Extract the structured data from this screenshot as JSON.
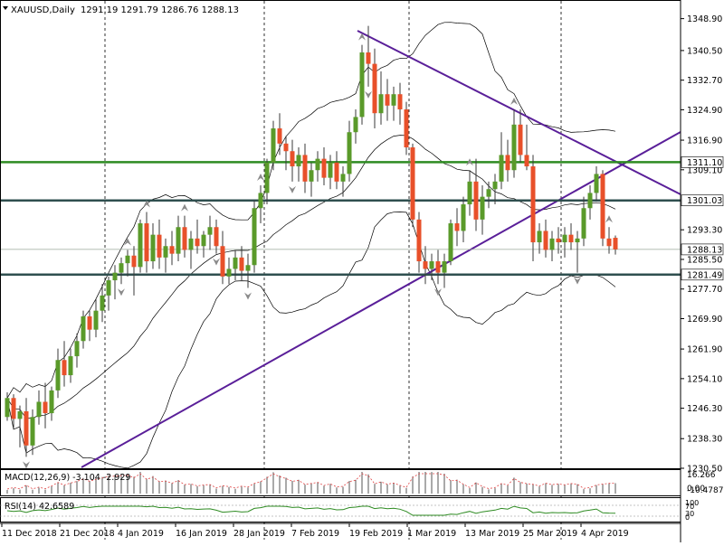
{
  "chart_data": {
    "type": "candlestick",
    "header": {
      "symbol": "XAUUSD,Daily",
      "ohlc": "1291.19 1291.79 1286.76 1288.13"
    },
    "price_axis": {
      "ylim": [
        1230.5,
        1350
      ],
      "ticks": [
        "1348.90",
        "1340.50",
        "1332.70",
        "1324.90",
        "1316.90",
        "1309.10",
        "1293.30",
        "1285.50",
        "1277.70",
        "1269.90",
        "1261.90",
        "1254.10",
        "1246.30",
        "1238.30",
        "1230.50"
      ]
    },
    "date_labels": [
      "11 Dec 2018",
      "21 Dec 2018",
      "4 Jan 2019",
      "16 Jan 2019",
      "28 Jan 2019",
      "7 Feb 2019",
      "19 Feb 2019",
      "1 Mar 2019",
      "13 Mar 2019",
      "25 Mar 2019",
      "4 Apr 2019"
    ],
    "levels": [
      {
        "value": 1311.1,
        "label": "1311.10",
        "color": "#2e8b22"
      },
      {
        "value": 1301.03,
        "label": "1301.03",
        "color": "#2f4f4f"
      },
      {
        "value": 1281.49,
        "label": "1281.49",
        "color": "#2f4f4f"
      }
    ],
    "last_price": {
      "value": 1288.13,
      "label": "1288.13"
    },
    "colors": {
      "up": "#5a9a2a",
      "down": "#e8502a",
      "trendline": "#5a1f99",
      "bands": "#000000"
    },
    "candles": [
      [
        1244.0,
        1250.5,
        1243.0,
        1249.0
      ],
      [
        1249.0,
        1250.0,
        1241.0,
        1243.5
      ],
      [
        1243.5,
        1247.0,
        1236.0,
        1245.5
      ],
      [
        1245.5,
        1249.0,
        1233.5,
        1236.5
      ],
      [
        1236.5,
        1246.0,
        1234.0,
        1244.0
      ],
      [
        1244.0,
        1251.0,
        1242.0,
        1248.0
      ],
      [
        1248.0,
        1253.0,
        1241.0,
        1245.0
      ],
      [
        1245.0,
        1252.0,
        1243.0,
        1251.0
      ],
      [
        1251.0,
        1262.0,
        1249.0,
        1259.0
      ],
      [
        1259.0,
        1264.0,
        1252.0,
        1255.0
      ],
      [
        1255.0,
        1262.0,
        1253.0,
        1260.0
      ],
      [
        1260.0,
        1266.0,
        1257.0,
        1264.0
      ],
      [
        1264.0,
        1272.0,
        1262.0,
        1270.5
      ],
      [
        1270.5,
        1272.0,
        1264.0,
        1267.0
      ],
      [
        1267.0,
        1275.0,
        1265.0,
        1272.0
      ],
      [
        1272.0,
        1279.0,
        1269.0,
        1276.0
      ],
      [
        1276.0,
        1281.0,
        1272.0,
        1280.0
      ],
      [
        1280.0,
        1284.0,
        1275.0,
        1282.0
      ],
      [
        1282.0,
        1286.0,
        1279.0,
        1284.5
      ],
      [
        1284.5,
        1288.0,
        1281.0,
        1286.5
      ],
      [
        1286.5,
        1289.0,
        1276.0,
        1283.5
      ],
      [
        1283.5,
        1296.0,
        1282.0,
        1295.0
      ],
      [
        1295.0,
        1298.0,
        1282.0,
        1285.0
      ],
      [
        1285.0,
        1295.0,
        1283.0,
        1292.0
      ],
      [
        1292.0,
        1296.0,
        1283.0,
        1286.0
      ],
      [
        1286.0,
        1291.0,
        1282.0,
        1289.0
      ],
      [
        1289.0,
        1293.0,
        1284.0,
        1287.0
      ],
      [
        1287.0,
        1297.0,
        1285.0,
        1294.0
      ],
      [
        1294.0,
        1297.0,
        1286.0,
        1288.0
      ],
      [
        1288.0,
        1293.0,
        1283.0,
        1291.0
      ],
      [
        1291.0,
        1296.0,
        1287.0,
        1289.0
      ],
      [
        1289.0,
        1293.0,
        1286.0,
        1292.0
      ],
      [
        1292.0,
        1297.0,
        1288.0,
        1294.0
      ],
      [
        1294.0,
        1296.0,
        1287.0,
        1289.0
      ],
      [
        1289.0,
        1293.0,
        1279.0,
        1281.0
      ],
      [
        1281.0,
        1286.0,
        1279.0,
        1283.0
      ],
      [
        1283.0,
        1288.0,
        1280.0,
        1286.0
      ],
      [
        1286.0,
        1289.0,
        1280.0,
        1282.5
      ],
      [
        1282.5,
        1287.0,
        1278.0,
        1284.0
      ],
      [
        1284.0,
        1301.0,
        1282.0,
        1299.0
      ],
      [
        1299.0,
        1305.0,
        1295.0,
        1303.0
      ],
      [
        1303.0,
        1312.0,
        1300.0,
        1311.0
      ],
      [
        1311.0,
        1322.0,
        1309.0,
        1320.0
      ],
      [
        1320.0,
        1324.0,
        1313.0,
        1316.0
      ],
      [
        1316.0,
        1318.0,
        1309.0,
        1314.0
      ],
      [
        1314.0,
        1317.0,
        1306.0,
        1310.0
      ],
      [
        1310.0,
        1315.0,
        1306.0,
        1313.0
      ],
      [
        1313.0,
        1316.0,
        1303.0,
        1306.0
      ],
      [
        1306.0,
        1311.0,
        1302.0,
        1309.0
      ],
      [
        1309.0,
        1314.0,
        1306.0,
        1312.0
      ],
      [
        1312.0,
        1315.0,
        1305.0,
        1307.0
      ],
      [
        1307.0,
        1313.0,
        1304.0,
        1311.0
      ],
      [
        1311.0,
        1314.0,
        1304.0,
        1306.0
      ],
      [
        1306.0,
        1310.0,
        1302.0,
        1308.0
      ],
      [
        1308.0,
        1322.0,
        1306.0,
        1319.0
      ],
      [
        1319.0,
        1325.0,
        1316.0,
        1323.0
      ],
      [
        1323.0,
        1342.0,
        1321.0,
        1340.0
      ],
      [
        1340.0,
        1347.0,
        1331.0,
        1337.0
      ],
      [
        1337.0,
        1341.0,
        1320.0,
        1324.0
      ],
      [
        1324.0,
        1335.0,
        1321.0,
        1329.0
      ],
      [
        1329.0,
        1333.0,
        1322.0,
        1326.0
      ],
      [
        1326.0,
        1331.0,
        1322.0,
        1329.0
      ],
      [
        1329.0,
        1332.0,
        1321.0,
        1325.0
      ],
      [
        1325.0,
        1327.0,
        1313.0,
        1315.0
      ],
      [
        1315.0,
        1316.0,
        1294.0,
        1296.0
      ],
      [
        1296.0,
        1298.0,
        1282.0,
        1285.0
      ],
      [
        1285.0,
        1289.0,
        1279.0,
        1283.0
      ],
      [
        1283.0,
        1287.0,
        1280.0,
        1285.0
      ],
      [
        1285.0,
        1288.0,
        1279.0,
        1282.0
      ],
      [
        1282.0,
        1287.0,
        1278.0,
        1285.0
      ],
      [
        1285.0,
        1296.0,
        1284.0,
        1295.0
      ],
      [
        1295.0,
        1299.0,
        1289.0,
        1293.0
      ],
      [
        1293.0,
        1302.0,
        1290.0,
        1300.0
      ],
      [
        1300.0,
        1309.0,
        1297.0,
        1306.0
      ],
      [
        1306.0,
        1312.0,
        1293.0,
        1296.0
      ],
      [
        1296.0,
        1305.0,
        1292.0,
        1302.0
      ],
      [
        1302.0,
        1306.0,
        1299.0,
        1304.0
      ],
      [
        1304.0,
        1308.0,
        1300.0,
        1306.0
      ],
      [
        1306.0,
        1319.0,
        1304.0,
        1313.0
      ],
      [
        1313.0,
        1317.0,
        1306.0,
        1309.0
      ],
      [
        1309.0,
        1325.0,
        1307.0,
        1321.0
      ],
      [
        1321.0,
        1325.0,
        1311.0,
        1313.0
      ],
      [
        1313.0,
        1321.0,
        1309.0,
        1310.0
      ],
      [
        1310.0,
        1313.0,
        1285.0,
        1290.0
      ],
      [
        1290.0,
        1295.0,
        1287.0,
        1293.0
      ],
      [
        1293.0,
        1296.0,
        1286.0,
        1288.0
      ],
      [
        1288.0,
        1293.0,
        1285.0,
        1291.0
      ],
      [
        1291.0,
        1294.0,
        1287.0,
        1290.0
      ],
      [
        1290.0,
        1294.0,
        1286.0,
        1292.0
      ],
      [
        1292.0,
        1295.0,
        1288.0,
        1290.0
      ],
      [
        1290.0,
        1293.0,
        1282.0,
        1291.0
      ],
      [
        1291.0,
        1302.0,
        1289.0,
        1299.0
      ],
      [
        1299.0,
        1305.0,
        1296.0,
        1303.0
      ],
      [
        1303.0,
        1310.0,
        1301.0,
        1308.0
      ],
      [
        1308.0,
        1309.0,
        1289.0,
        1291.0
      ],
      [
        1291.0,
        1294.0,
        1287.0,
        1289.0
      ],
      [
        1291.19,
        1291.79,
        1286.76,
        1288.13
      ]
    ],
    "macd": {
      "label": "MACD(12,26,9) -3.104 -2.929",
      "ticks": [
        "16.266",
        "0.00",
        "-10.4787"
      ]
    },
    "rsi": {
      "label": "RSI(14) 42.6589",
      "ticks": [
        "100",
        "70",
        "30",
        "0"
      ]
    }
  }
}
